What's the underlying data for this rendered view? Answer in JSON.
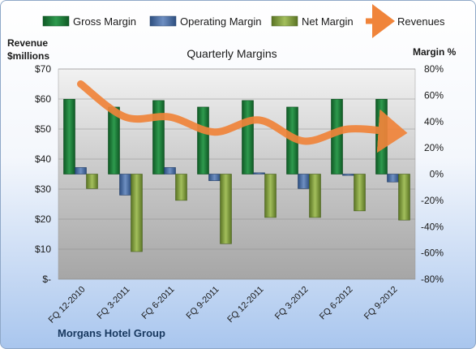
{
  "company_label": "Morgans Hotel Group",
  "chart_data": {
    "type": "bar",
    "title": "Quarterly Margins",
    "left_axis_label_line1": "Revenue",
    "left_axis_label_line2": "$millions",
    "right_axis_label": "Margin %",
    "categories": [
      "FQ 12-2010",
      "FQ 3-2011",
      "FQ 6-2011",
      "FQ 9-2011",
      "FQ 12-2011",
      "FQ 3-2012",
      "FQ 6-2012",
      "FQ 9-2012"
    ],
    "left_ylim": [
      0,
      70
    ],
    "left_ticks": [
      "$-",
      "$10",
      "$20",
      "$30",
      "$40",
      "$50",
      "$60",
      "$70"
    ],
    "right_ylim": [
      -80,
      80
    ],
    "right_ticks": [
      "-80%",
      "-60%",
      "-40%",
      "-20%",
      "0%",
      "20%",
      "40%",
      "60%",
      "80%"
    ],
    "legend_position": "top",
    "series": [
      {
        "name": "Gross Margin",
        "axis": "right",
        "kind": "bar",
        "color": "#1e7a3a",
        "values": [
          57,
          51,
          56,
          51,
          56,
          51,
          57,
          57
        ]
      },
      {
        "name": "Operating Margin",
        "axis": "right",
        "kind": "bar",
        "color": "#4a6fa5",
        "values": [
          5,
          -16,
          5,
          -5,
          1,
          -11,
          -1,
          -6
        ]
      },
      {
        "name": "Net Margin",
        "axis": "right",
        "kind": "bar",
        "color": "#7f9c3a",
        "values": [
          -11,
          -59,
          -20,
          -53,
          -33,
          -33,
          -28,
          -35
        ]
      },
      {
        "name": "Revenues",
        "axis": "left",
        "kind": "line",
        "color": "#f0843a",
        "values": [
          65,
          54,
          54,
          49,
          53,
          46,
          50,
          49
        ]
      }
    ],
    "grid": true
  }
}
